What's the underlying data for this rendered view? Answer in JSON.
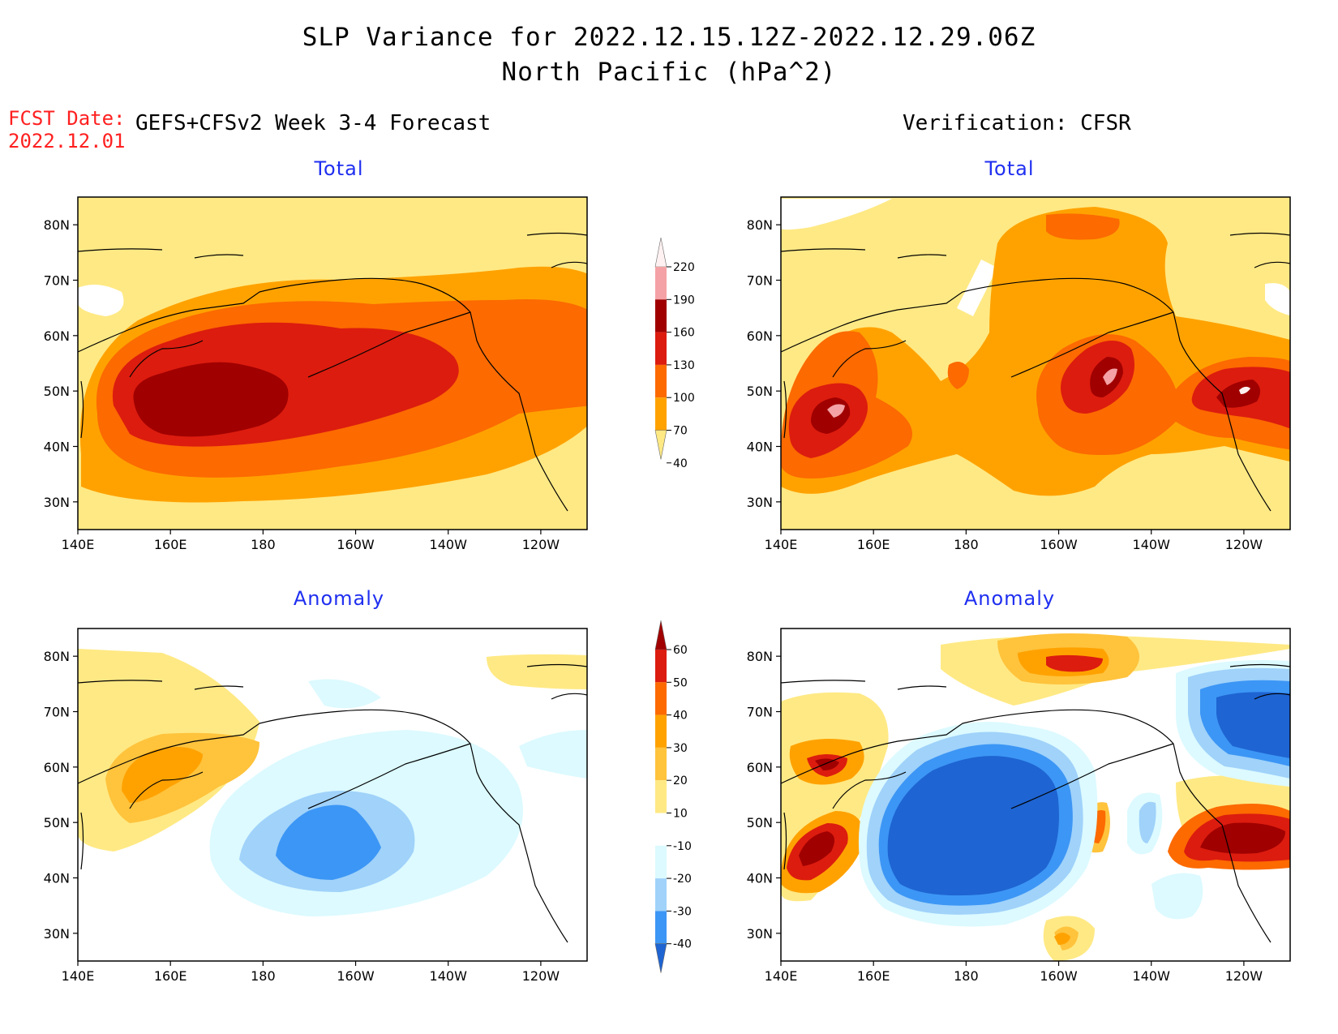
{
  "header": {
    "title_line1": "SLP Variance for 2022.12.15.12Z-2022.12.29.06Z",
    "title_line2": "North Pacific (hPa^2)",
    "fcst_label": "FCST Date:",
    "fcst_date": "2022.12.01",
    "left_column": "GEFS+CFSv2 Week 3-4 Forecast",
    "right_column": "Verification: CFSR"
  },
  "panels": [
    {
      "id": "fcst_total",
      "title": "Total"
    },
    {
      "id": "cfsr_total",
      "title": "Total"
    },
    {
      "id": "fcst_anom",
      "title": "Anomaly"
    },
    {
      "id": "cfsr_anom",
      "title": "Anomaly"
    }
  ],
  "axes": {
    "lat_ticks": [
      "80N",
      "70N",
      "60N",
      "50N",
      "40N",
      "30N"
    ],
    "lon_ticks": [
      "140E",
      "160E",
      "180",
      "160W",
      "140W",
      "120W"
    ],
    "lat_range": [
      25,
      85
    ],
    "lon_range_deg_east": [
      140,
      250
    ]
  },
  "legends": {
    "total": {
      "labels": [
        "220",
        "190",
        "160",
        "130",
        "100",
        "70",
        "40"
      ],
      "colors": [
        "#fff1f1",
        "#f4a2a5",
        "#a00000",
        "#dc1c0f",
        "#fc6a00",
        "#ffa200",
        "#ffe984"
      ]
    },
    "anomaly": {
      "labels": [
        "60",
        "50",
        "40",
        "30",
        "20",
        "10",
        "-10",
        "-20",
        "-30",
        "-40"
      ],
      "colors": [
        "#a00000",
        "#dc1c0f",
        "#fc6a00",
        "#ffa200",
        "#ffc33c",
        "#ffe984",
        "#ffffff",
        "#dcfaff",
        "#a0d2fa",
        "#3c96f5",
        "#1e64d2"
      ]
    }
  }
}
